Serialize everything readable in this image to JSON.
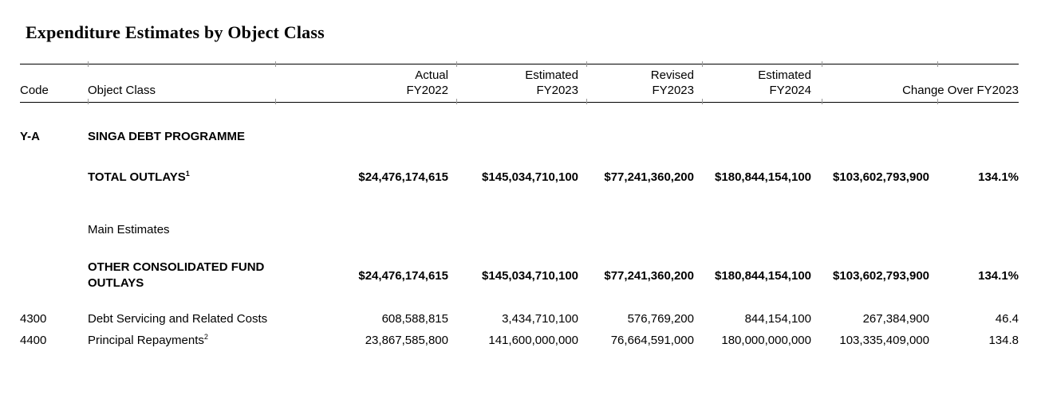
{
  "page_title": "Expenditure Estimates by Object Class",
  "table": {
    "columns": {
      "code": "Code",
      "object_class": "Object Class",
      "actual": {
        "line1": "Actual",
        "line2": "FY2022"
      },
      "estimated_fy2023": {
        "line1": "Estimated",
        "line2": "FY2023"
      },
      "revised_fy2023": {
        "line1": "Revised",
        "line2": "FY2023"
      },
      "estimated_fy2024": {
        "line1": "Estimated",
        "line2": "FY2024"
      },
      "change": "Change Over FY2023"
    },
    "section": {
      "code": "Y-A",
      "name": "SINGA DEBT PROGRAMME"
    },
    "total_outlays": {
      "label": "TOTAL OUTLAYS",
      "footnote_marker": "1",
      "actual_fy2022": "$24,476,174,615",
      "estimated_fy2023": "$145,034,710,100",
      "revised_fy2023": "$77,241,360,200",
      "estimated_fy2024": "$180,844,154,100",
      "change_amount": "$103,602,793,900",
      "change_percent": "134.1%"
    },
    "subsection_label": "Main Estimates",
    "other_consolidated_fund_outlays": {
      "label": "OTHER CONSOLIDATED FUND OUTLAYS",
      "actual_fy2022": "$24,476,174,615",
      "estimated_fy2023": "$145,034,710,100",
      "revised_fy2023": "$77,241,360,200",
      "estimated_fy2024": "$180,844,154,100",
      "change_amount": "$103,602,793,900",
      "change_percent": "134.1%"
    },
    "line_items": [
      {
        "code": "4300",
        "label": "Debt Servicing and Related Costs",
        "footnote_marker": "",
        "actual_fy2022": "608,588,815",
        "estimated_fy2023": "3,434,710,100",
        "revised_fy2023": "576,769,200",
        "estimated_fy2024": "844,154,100",
        "change_amount": "267,384,900",
        "change_percent": "46.4"
      },
      {
        "code": "4400",
        "label": "Principal Repayments",
        "footnote_marker": "2",
        "actual_fy2022": "23,867,585,800",
        "estimated_fy2023": "141,600,000,000",
        "revised_fy2023": "76,664,591,000",
        "estimated_fy2024": "180,000,000,000",
        "change_amount": "103,335,409,000",
        "change_percent": "134.8"
      }
    ]
  }
}
